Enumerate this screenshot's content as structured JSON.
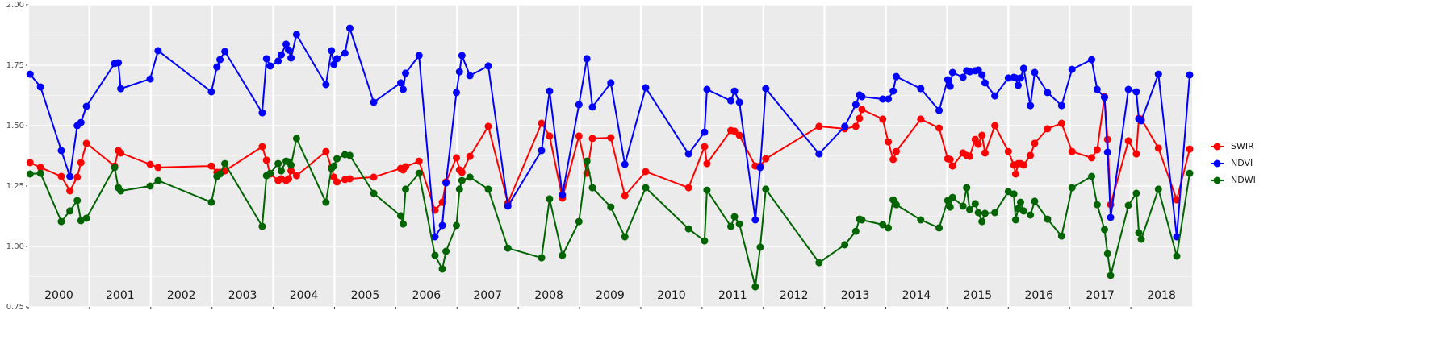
{
  "chart_data": {
    "type": "line",
    "x": [
      2000.03,
      2000.2,
      2000.54,
      2000.68,
      2000.8,
      2000.86,
      2000.95,
      2001.41,
      2001.47,
      2001.51,
      2001.99,
      2002.12,
      2002.99,
      2003.08,
      2003.13,
      2003.21,
      2003.82,
      2003.89,
      2003.95,
      2004.08,
      2004.13,
      2004.21,
      2004.25,
      2004.29,
      2004.38,
      2004.86,
      2004.95,
      2004.99,
      2005.04,
      2005.17,
      2005.25,
      2005.64,
      2006.08,
      2006.12,
      2006.16,
      2006.38,
      2006.64,
      2006.76,
      2006.82,
      2006.99,
      2007.04,
      2007.08,
      2007.21,
      2007.51,
      2007.83,
      2008.38,
      2008.51,
      2008.72,
      2008.99,
      2009.12,
      2009.21,
      2009.51,
      2009.74,
      2010.08,
      2010.78,
      2011.04,
      2011.08,
      2011.47,
      2011.53,
      2011.61,
      2011.87,
      2011.95,
      2012.04,
      2012.91,
      2013.33,
      2013.51,
      2013.57,
      2013.61,
      2013.95,
      2014.04,
      2014.12,
      2014.17,
      2014.57,
      2014.87,
      2015.01,
      2015.05,
      2015.09,
      2015.26,
      2015.32,
      2015.37,
      2015.46,
      2015.51,
      2015.57,
      2015.62,
      2015.78,
      2016.0,
      2016.09,
      2016.12,
      2016.16,
      2016.2,
      2016.25,
      2016.36,
      2016.43,
      2016.64,
      2016.87,
      2017.04,
      2017.36,
      2017.45,
      2017.57,
      2017.62,
      2017.67,
      2017.96,
      2018.09,
      2018.13,
      2018.17,
      2018.45,
      2018.75,
      2018.96
    ],
    "series": [
      {
        "name": "SWIR",
        "color": "#ff0000",
        "values": [
          1.347,
          1.327,
          1.29,
          1.23,
          1.287,
          1.347,
          1.427,
          1.333,
          1.397,
          1.387,
          1.34,
          1.327,
          1.333,
          1.307,
          1.307,
          1.313,
          1.413,
          1.357,
          1.3,
          1.273,
          1.28,
          1.273,
          1.28,
          1.313,
          1.293,
          1.393,
          1.327,
          1.287,
          1.267,
          1.277,
          1.28,
          1.287,
          1.323,
          1.317,
          1.33,
          1.353,
          1.15,
          1.183,
          1.267,
          1.367,
          1.317,
          1.307,
          1.373,
          1.497,
          1.18,
          1.51,
          1.457,
          1.2,
          1.457,
          1.303,
          1.447,
          1.45,
          1.21,
          1.31,
          1.243,
          1.413,
          1.343,
          1.48,
          1.477,
          1.46,
          1.333,
          1.333,
          1.363,
          1.497,
          1.487,
          1.497,
          1.53,
          1.567,
          1.527,
          1.433,
          1.36,
          1.393,
          1.527,
          1.49,
          1.363,
          1.36,
          1.333,
          1.387,
          1.377,
          1.373,
          1.443,
          1.423,
          1.46,
          1.387,
          1.5,
          1.393,
          1.337,
          1.3,
          1.343,
          1.343,
          1.337,
          1.377,
          1.427,
          1.487,
          1.51,
          1.393,
          1.367,
          1.4,
          1.62,
          1.443,
          1.173,
          1.437,
          1.383,
          1.53,
          1.527,
          1.407,
          1.193,
          1.403
        ]
      },
      {
        "name": "NDVI",
        "color": "#0000ff",
        "values": [
          1.713,
          1.66,
          1.397,
          1.29,
          1.5,
          1.513,
          1.58,
          1.757,
          1.76,
          1.653,
          1.693,
          1.81,
          1.64,
          1.743,
          1.773,
          1.807,
          1.553,
          1.777,
          1.747,
          1.767,
          1.793,
          1.837,
          1.813,
          1.78,
          1.877,
          1.67,
          1.81,
          1.753,
          1.777,
          1.8,
          1.903,
          1.597,
          1.677,
          1.65,
          1.717,
          1.79,
          1.04,
          1.087,
          1.263,
          1.637,
          1.723,
          1.79,
          1.707,
          1.747,
          1.167,
          1.397,
          1.643,
          1.213,
          1.587,
          1.777,
          1.577,
          1.677,
          1.34,
          1.657,
          1.383,
          1.473,
          1.65,
          1.603,
          1.643,
          1.597,
          1.11,
          1.327,
          1.653,
          1.383,
          1.497,
          1.587,
          1.627,
          1.62,
          1.61,
          1.61,
          1.643,
          1.703,
          1.653,
          1.563,
          1.69,
          1.663,
          1.72,
          1.7,
          1.727,
          1.723,
          1.727,
          1.73,
          1.71,
          1.677,
          1.623,
          1.697,
          1.7,
          1.697,
          1.667,
          1.697,
          1.737,
          1.583,
          1.72,
          1.637,
          1.583,
          1.733,
          1.773,
          1.65,
          1.617,
          1.39,
          1.12,
          1.65,
          1.64,
          1.527,
          1.52,
          1.713,
          1.04,
          1.71
        ]
      },
      {
        "name": "NDWI",
        "color": "#006400",
        "values": [
          1.3,
          1.303,
          1.103,
          1.147,
          1.19,
          1.107,
          1.117,
          1.327,
          1.243,
          1.23,
          1.25,
          1.273,
          1.183,
          1.29,
          1.3,
          1.343,
          1.083,
          1.293,
          1.303,
          1.343,
          1.313,
          1.353,
          1.35,
          1.337,
          1.447,
          1.183,
          1.323,
          1.333,
          1.363,
          1.38,
          1.377,
          1.22,
          1.127,
          1.093,
          1.237,
          1.303,
          0.963,
          0.907,
          0.98,
          1.087,
          1.237,
          1.273,
          1.287,
          1.237,
          0.993,
          0.953,
          1.197,
          0.963,
          1.103,
          1.353,
          1.243,
          1.163,
          1.04,
          1.243,
          1.073,
          1.023,
          1.233,
          1.083,
          1.123,
          1.093,
          0.833,
          0.997,
          1.237,
          0.933,
          1.007,
          1.063,
          1.113,
          1.11,
          1.09,
          1.077,
          1.193,
          1.173,
          1.11,
          1.077,
          1.19,
          1.163,
          1.203,
          1.167,
          1.243,
          1.153,
          1.177,
          1.14,
          1.103,
          1.137,
          1.14,
          1.227,
          1.217,
          1.11,
          1.157,
          1.183,
          1.147,
          1.13,
          1.187,
          1.113,
          1.043,
          1.243,
          1.29,
          1.173,
          1.07,
          0.97,
          0.88,
          1.17,
          1.22,
          1.057,
          1.03,
          1.237,
          0.96,
          1.303
        ]
      }
    ],
    "xlim": [
      2000,
      2019
    ],
    "xticks": [
      2000,
      2001,
      2002,
      2003,
      2004,
      2005,
      2006,
      2007,
      2008,
      2009,
      2010,
      2011,
      2012,
      2013,
      2014,
      2015,
      2016,
      2017,
      2018
    ],
    "ylim": [
      0.75,
      2.0
    ],
    "yticks": [
      {
        "value": 0.75,
        "label": "0.75"
      },
      {
        "value": 1.0,
        "label": "1.00"
      },
      {
        "value": 1.25,
        "label": "1.25"
      },
      {
        "value": 1.5,
        "label": "1.50"
      },
      {
        "value": 1.75,
        "label": "1.75"
      },
      {
        "value": 2.0,
        "label": "2.00"
      }
    ],
    "y_minor_ticks": [
      0.875,
      1.125,
      1.375,
      1.625,
      1.875
    ],
    "grid": true,
    "legend": "right"
  }
}
